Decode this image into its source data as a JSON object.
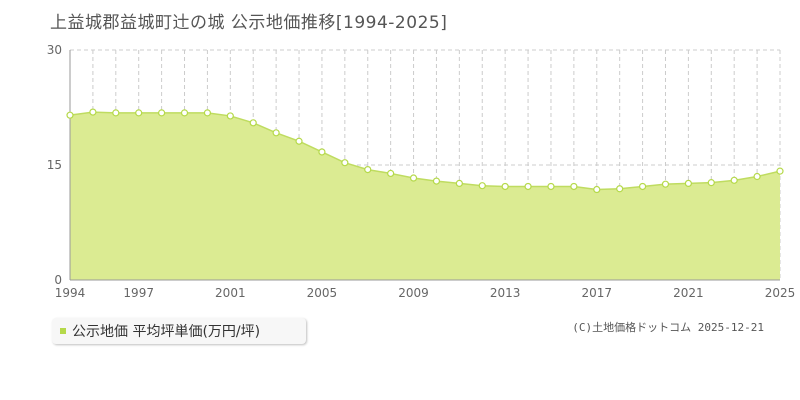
{
  "title": "上益城郡益城町辻の城 公示地価推移[1994-2025]",
  "legend": {
    "label": "公示地価 平均坪単価(万円/坪)"
  },
  "credit": "(C)土地価格ドットコム 2025-12-21",
  "colors": {
    "fill": "#dbeb92",
    "line": "#bfdc60",
    "point_stroke": "#b5d94a",
    "legend": "#b5d94a"
  },
  "chart_data": {
    "type": "area",
    "x": [
      1994,
      1995,
      1996,
      1997,
      1998,
      1999,
      2000,
      2001,
      2002,
      2003,
      2004,
      2005,
      2006,
      2007,
      2008,
      2009,
      2010,
      2011,
      2012,
      2013,
      2014,
      2015,
      2016,
      2017,
      2018,
      2019,
      2020,
      2021,
      2022,
      2023,
      2024,
      2025
    ],
    "series": [
      {
        "name": "公示地価 平均坪単価(万円/坪)",
        "values": [
          21.5,
          21.9,
          21.8,
          21.8,
          21.8,
          21.8,
          21.8,
          21.4,
          20.5,
          19.2,
          18.1,
          16.7,
          15.3,
          14.4,
          13.9,
          13.3,
          12.9,
          12.6,
          12.3,
          12.2,
          12.2,
          12.2,
          12.2,
          11.8,
          11.9,
          12.2,
          12.5,
          12.6,
          12.7,
          13.0,
          13.5,
          14.2
        ]
      }
    ],
    "xticks": [
      "1994",
      "1997",
      "2001",
      "2005",
      "2009",
      "2013",
      "2017",
      "2021",
      "2025"
    ],
    "yticks": [
      "0",
      "15",
      "30"
    ],
    "ylim": [
      0,
      30
    ],
    "xlim": [
      1994,
      2025
    ],
    "grid": true,
    "legend_position": "bottom-left"
  }
}
